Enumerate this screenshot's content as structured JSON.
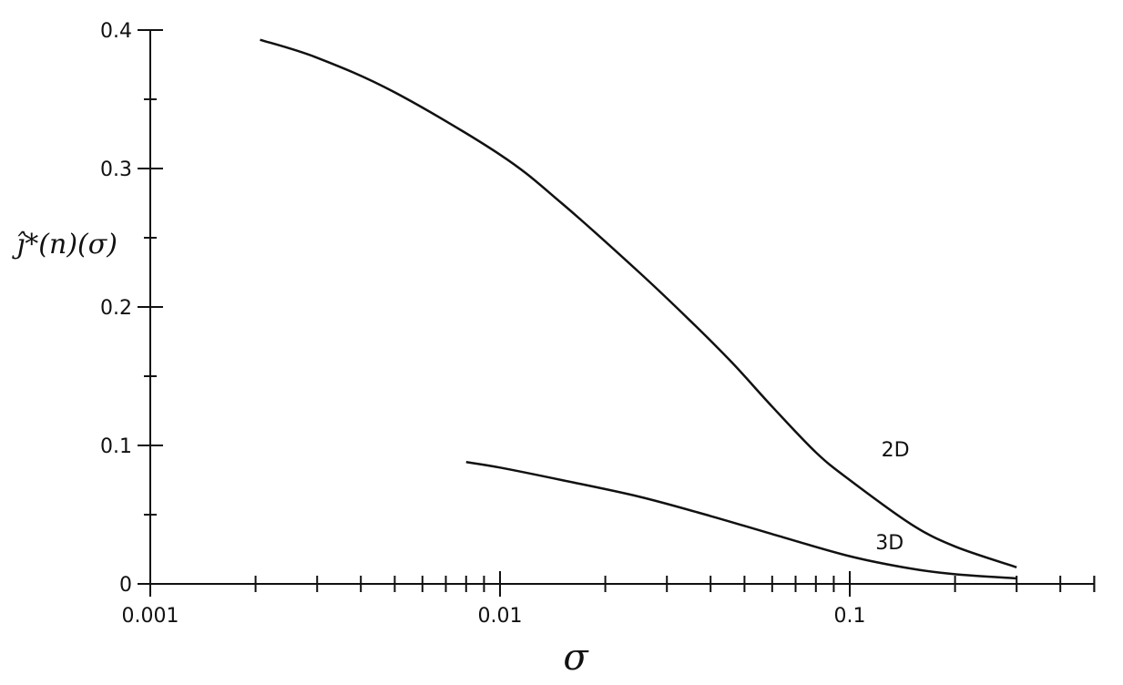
{
  "chart_data": {
    "type": "line",
    "title": "",
    "xlabel": "σ",
    "ylabel": "ĵ*(n)(σ)",
    "x_scale": "log",
    "xlim": [
      0.001,
      0.5
    ],
    "ylim": [
      0,
      0.4
    ],
    "grid": false,
    "x_ticks": [
      {
        "value": 0.001,
        "label": "0.001"
      },
      {
        "value": 0.01,
        "label": "0.01"
      },
      {
        "value": 0.1,
        "label": "0.1"
      }
    ],
    "y_ticks": [
      {
        "value": 0,
        "label": "0"
      },
      {
        "value": 0.1,
        "label": "0.1"
      },
      {
        "value": 0.2,
        "label": "0.2"
      },
      {
        "value": 0.3,
        "label": "0.3"
      },
      {
        "value": 0.4,
        "label": "0.4"
      }
    ],
    "series": [
      {
        "name": "2D",
        "x": [
          0.00206,
          0.003,
          0.005,
          0.01,
          0.015,
          0.025,
          0.035,
          0.046,
          0.06,
          0.08,
          0.1,
          0.15,
          0.2,
          0.3
        ],
        "y": [
          0.393,
          0.38,
          0.355,
          0.31,
          0.275,
          0.225,
          0.19,
          0.16,
          0.128,
          0.095,
          0.075,
          0.043,
          0.027,
          0.012
        ]
      },
      {
        "name": "3D",
        "x": [
          0.008,
          0.01,
          0.015,
          0.025,
          0.04,
          0.06,
          0.1,
          0.15,
          0.2,
          0.3
        ],
        "y": [
          0.088,
          0.084,
          0.075,
          0.063,
          0.049,
          0.036,
          0.02,
          0.011,
          0.007,
          0.004
        ]
      }
    ]
  }
}
